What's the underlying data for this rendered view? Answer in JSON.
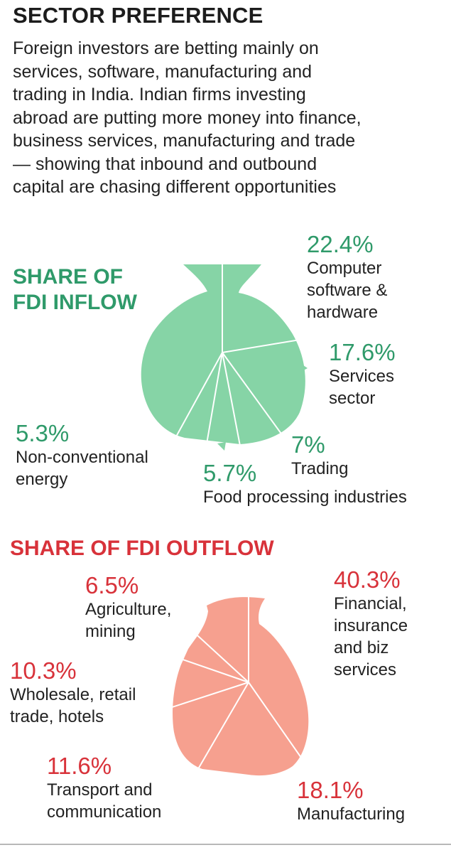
{
  "title": "SECTOR PREFERENCE",
  "intro_lines": [
    "Foreign investors are betting mainly on",
    "services, software, manufacturing and",
    "trading in India. Indian firms investing",
    "abroad are putting more money into finance,",
    "business services, manufacturing and trade",
    "— showing that inbound and outbound",
    "capital are chasing different opportunities"
  ],
  "colors": {
    "inflow": "#86d4a6",
    "inflow_text": "#2f9a6a",
    "outflow": "#f6a08f",
    "outflow_text": "#d8323a"
  },
  "chart_data": [
    {
      "type": "pie",
      "title_lines": [
        "SHARE OF",
        "FDI INFLOW"
      ],
      "slices": [
        {
          "pct_label": "22.4%",
          "value": 22.4,
          "label_lines": [
            "Computer",
            "software &",
            "hardware"
          ]
        },
        {
          "pct_label": "17.6%",
          "value": 17.6,
          "label_lines": [
            "Services",
            "sector"
          ]
        },
        {
          "pct_label": "7%",
          "value": 7,
          "label_lines": [
            "Trading"
          ]
        },
        {
          "pct_label": "5.7%",
          "value": 5.7,
          "label_lines": [
            "Food processing industries"
          ]
        },
        {
          "pct_label": "5.3%",
          "value": 5.3,
          "label_lines": [
            "Non-conventional",
            "energy"
          ]
        }
      ]
    },
    {
      "type": "pie",
      "title_lines": [
        "SHARE OF FDI OUTFLOW"
      ],
      "slices": [
        {
          "pct_label": "40.3%",
          "value": 40.3,
          "label_lines": [
            "Financial,",
            "insurance",
            "and biz",
            "services"
          ]
        },
        {
          "pct_label": "18.1%",
          "value": 18.1,
          "label_lines": [
            "Manufacturing"
          ]
        },
        {
          "pct_label": "11.6%",
          "value": 11.6,
          "label_lines": [
            "Transport and",
            "communication"
          ]
        },
        {
          "pct_label": "10.3%",
          "value": 10.3,
          "label_lines": [
            "Wholesale, retail",
            "trade, hotels"
          ]
        },
        {
          "pct_label": "6.5%",
          "value": 6.5,
          "label_lines": [
            "Agriculture,",
            "mining"
          ]
        }
      ]
    }
  ]
}
